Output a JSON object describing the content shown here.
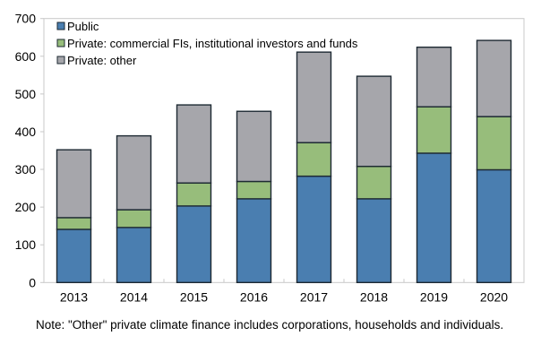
{
  "chart_data": {
    "type": "bar",
    "stacked": true,
    "title": "",
    "xlabel": "",
    "ylabel": "",
    "categories": [
      "2013",
      "2014",
      "2015",
      "2016",
      "2017",
      "2018",
      "2019",
      "2020"
    ],
    "series": [
      {
        "name": "Public",
        "color": "#4a7eb0",
        "values": [
          141,
          146,
          203,
          222,
          282,
          222,
          343,
          299
        ]
      },
      {
        "name": "Private: commercial FIs, institutional investors and funds",
        "color": "#97bd7b",
        "values": [
          31,
          47,
          61,
          46,
          89,
          86,
          123,
          141
        ]
      },
      {
        "name": "Private: other",
        "color": "#a6a6ab",
        "values": [
          180,
          196,
          207,
          186,
          240,
          239,
          158,
          202
        ]
      }
    ],
    "ylim": [
      0,
      700
    ],
    "yticks": [
      0,
      100,
      200,
      300,
      400,
      500,
      600,
      700
    ],
    "grid": false,
    "legend": "top-left",
    "note": "Note: \"Other\" private climate finance includes corporations, households and individuals."
  }
}
